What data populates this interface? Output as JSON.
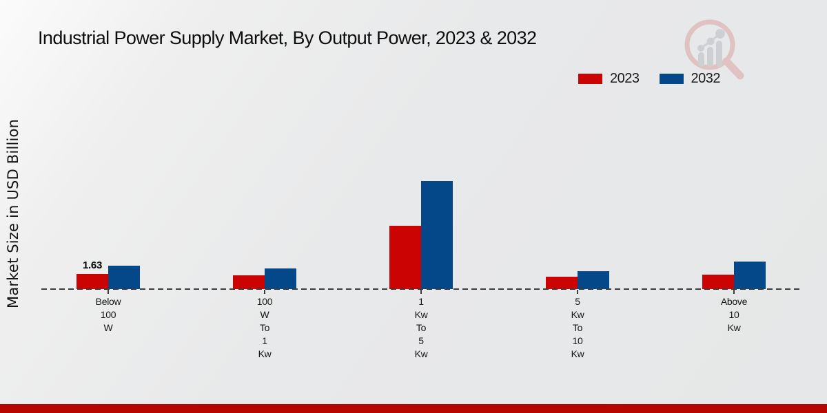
{
  "title": "Industrial Power Supply Market, By Output Power, 2023 & 2032",
  "ylabel": "Market Size in USD Billion",
  "legend": {
    "items": [
      {
        "label": "2023",
        "color": "#cb0302"
      },
      {
        "label": "2032",
        "color": "#05488a"
      }
    ]
  },
  "colors": {
    "series_2023": "#cb0302",
    "series_2032": "#05488a",
    "footer_strip": "#b70500",
    "baseline": "#3c3c3c",
    "background": "#e8e9ea"
  },
  "watermark": "magnifier-bar-chart-logo",
  "chart_data": {
    "type": "bar",
    "title": "Industrial Power Supply Market, By Output Power, 2023 & 2032",
    "xlabel": "",
    "ylabel": "Market Size in USD Billion",
    "ylim": [
      0,
      13
    ],
    "grid": false,
    "baseline_style": "dashed",
    "legend_position": "top-right",
    "categories": [
      "Below 100 W",
      "100 W To 1 Kw",
      "1 Kw To 5 Kw",
      "5 Kw To 10 Kw",
      "Above 10 Kw"
    ],
    "category_lines": [
      [
        "Below",
        "100",
        "W"
      ],
      [
        "100",
        "W",
        "To",
        "1",
        "Kw"
      ],
      [
        "1",
        "Kw",
        "To",
        "5",
        "Kw"
      ],
      [
        "5",
        "Kw",
        "To",
        "10",
        "Kw"
      ],
      [
        "Above",
        "10",
        "Kw"
      ]
    ],
    "series": [
      {
        "name": "2023",
        "color": "#cb0302",
        "values": [
          1.63,
          1.45,
          6.8,
          1.3,
          1.52
        ]
      },
      {
        "name": "2032",
        "color": "#05488a",
        "values": [
          2.55,
          2.2,
          11.6,
          1.96,
          2.93
        ]
      }
    ],
    "annotations": [
      {
        "series": "2023",
        "category": "Below 100 W",
        "text": "1.63"
      }
    ]
  }
}
